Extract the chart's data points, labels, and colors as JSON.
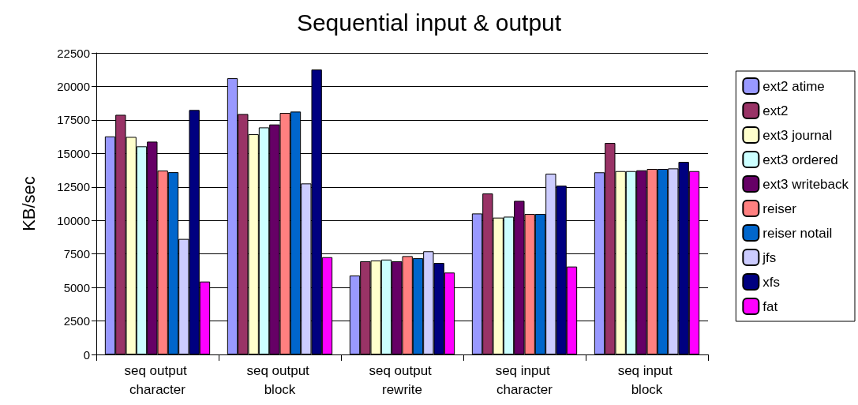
{
  "chart_data": {
    "type": "bar",
    "title": "Sequential input & output",
    "ylabel": "KB/sec",
    "categories": [
      "seq output character",
      "seq output block",
      "seq output rewrite",
      "seq input character",
      "seq input block"
    ],
    "ylim": [
      0,
      22500
    ],
    "yticks": [
      0,
      2500,
      5000,
      7500,
      10000,
      12500,
      15000,
      17500,
      20000,
      22500
    ],
    "grid": "y",
    "legend": "right",
    "series": [
      {
        "name": "ext2 atime",
        "color": "#9999ff",
        "values": [
          16270,
          20610,
          5890,
          10520,
          13590
        ]
      },
      {
        "name": "ext2",
        "color": "#993366",
        "values": [
          17880,
          17940,
          6950,
          12010,
          15780
        ]
      },
      {
        "name": "ext3 journal",
        "color": "#ffffcc",
        "values": [
          16230,
          16430,
          7010,
          10210,
          13680
        ]
      },
      {
        "name": "ext3 ordered",
        "color": "#ccffff",
        "values": [
          15530,
          16940,
          7080,
          10280,
          13680
        ]
      },
      {
        "name": "ext3 writeback",
        "color": "#660066",
        "values": [
          15880,
          17160,
          6950,
          11460,
          13740
        ]
      },
      {
        "name": "reiser",
        "color": "#ff8080",
        "values": [
          13720,
          18020,
          7340,
          10480,
          13840
        ]
      },
      {
        "name": "reiser notail",
        "color": "#0066cc",
        "values": [
          13600,
          18120,
          7180,
          10480,
          13840
        ]
      },
      {
        "name": "jfs",
        "color": "#ccccff",
        "values": [
          8620,
          12760,
          7700,
          13490,
          13880
        ]
      },
      {
        "name": "xfs",
        "color": "#000080",
        "values": [
          18240,
          21260,
          6830,
          12590,
          14370
        ]
      },
      {
        "name": "fat",
        "color": "#ff00ff",
        "values": [
          5440,
          7260,
          6110,
          6560,
          13680
        ]
      }
    ]
  }
}
